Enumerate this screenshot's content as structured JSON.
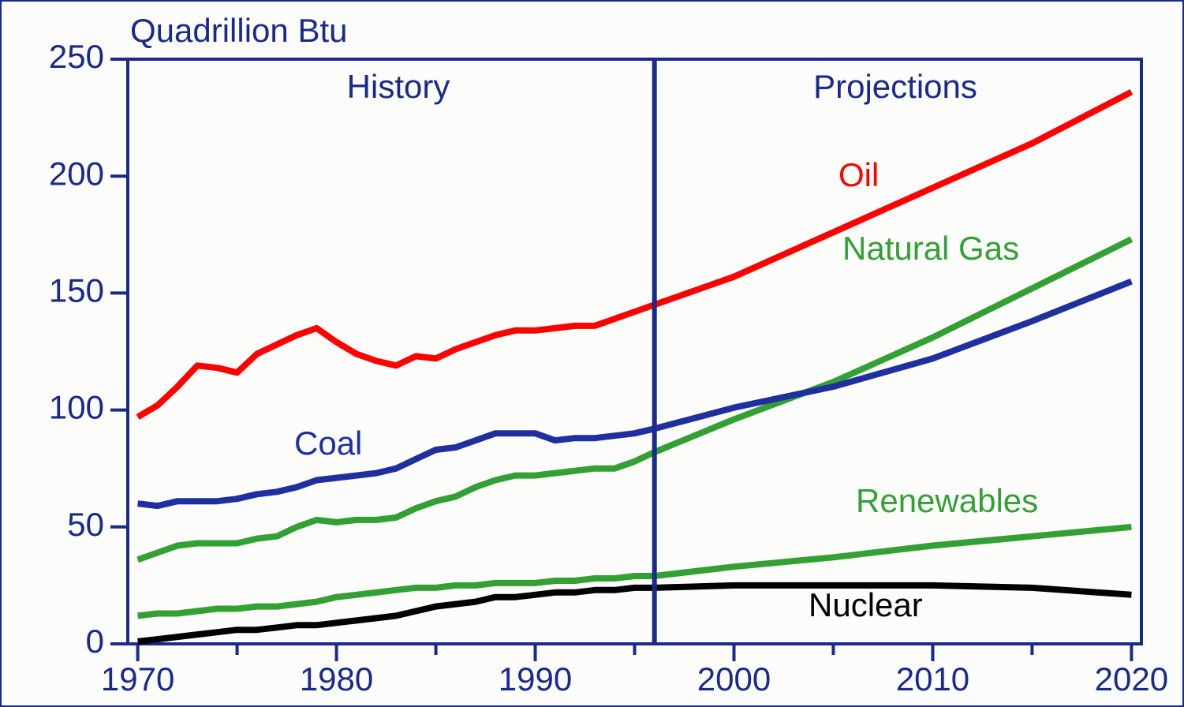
{
  "chart_data": {
    "type": "line",
    "ylabel": "Quadrillion Btu",
    "history_label": "History",
    "projections_label": "Projections",
    "divider": 1996,
    "x": [
      1970,
      1971,
      1972,
      1973,
      1974,
      1975,
      1976,
      1977,
      1978,
      1979,
      1980,
      1981,
      1982,
      1983,
      1984,
      1985,
      1986,
      1987,
      1988,
      1989,
      1990,
      1991,
      1992,
      1993,
      1994,
      1995,
      1996,
      2000,
      2005,
      2010,
      2015,
      2020
    ],
    "series": [
      {
        "name": "Oil",
        "color": "#ff0000",
        "values": [
          97,
          102,
          110,
          119,
          118,
          116,
          124,
          128,
          132,
          135,
          129,
          124,
          121,
          119,
          123,
          122,
          126,
          129,
          132,
          134,
          134,
          135,
          136,
          136,
          139,
          142,
          145,
          157,
          176,
          195,
          214,
          236
        ]
      },
      {
        "name": "Natural Gas",
        "color": "#33a033",
        "values": [
          36,
          39,
          42,
          43,
          43,
          43,
          45,
          46,
          50,
          53,
          52,
          53,
          53,
          54,
          58,
          61,
          63,
          67,
          70,
          72,
          72,
          73,
          74,
          75,
          75,
          78,
          82,
          96,
          112,
          131,
          152,
          173
        ]
      },
      {
        "name": "Coal",
        "color": "#1f2f9f",
        "values": [
          60,
          59,
          61,
          61,
          61,
          62,
          64,
          65,
          67,
          70,
          71,
          72,
          73,
          75,
          79,
          83,
          84,
          87,
          90,
          90,
          90,
          87,
          88,
          88,
          89,
          90,
          92,
          101,
          110,
          122,
          138,
          155
        ]
      },
      {
        "name": "Renewables",
        "color": "#33a033",
        "values": [
          12,
          13,
          13,
          14,
          15,
          15,
          16,
          16,
          17,
          18,
          20,
          21,
          22,
          23,
          24,
          24,
          25,
          25,
          26,
          26,
          26,
          27,
          27,
          28,
          28,
          29,
          29,
          33,
          37,
          42,
          46,
          50
        ]
      },
      {
        "name": "Nuclear",
        "color": "#000000",
        "values": [
          1,
          2,
          3,
          4,
          5,
          6,
          6,
          7,
          8,
          8,
          9,
          10,
          11,
          12,
          14,
          16,
          17,
          18,
          20,
          20,
          21,
          22,
          22,
          23,
          23,
          24,
          24,
          25,
          25,
          25,
          24,
          21
        ]
      }
    ],
    "xlim": [
      1969.5,
      2020.5
    ],
    "xticks": [
      1970,
      1980,
      1990,
      2000,
      2010,
      2020
    ],
    "xminor_ticks": [
      1975,
      1985,
      1995,
      2005,
      2015
    ],
    "ylim": [
      0,
      250
    ],
    "yticks": [
      0,
      50,
      100,
      150,
      200,
      250
    ],
    "axis_color": "#1a2a8c"
  }
}
